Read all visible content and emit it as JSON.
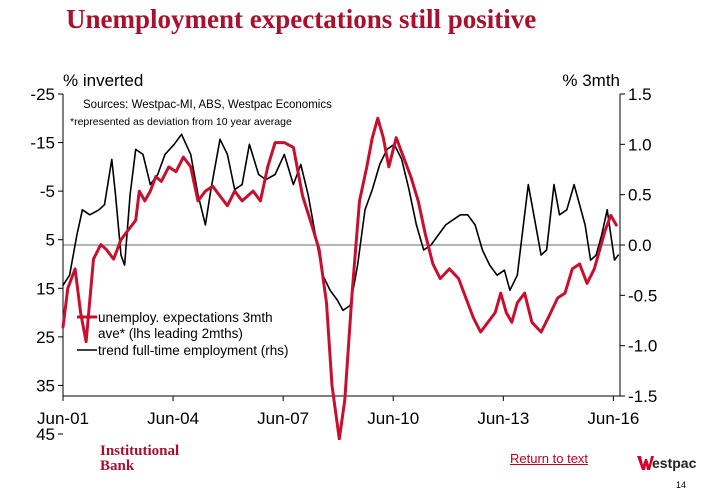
{
  "slide": {
    "title": "Unemployment expectations still positive",
    "logo_line1": "Institutional",
    "logo_line2": "Bank",
    "return_link": "Return to text",
    "brand": "estpac",
    "page_number": "14",
    "brand_color": "#a8102e"
  },
  "chart_data": {
    "type": "line",
    "left_axis_label": "% inverted",
    "right_axis_label": "% 3mth",
    "source_note": "Sources: Westpac-MI, ABS, Westpac Economics",
    "footnote": "*represented as deviation from 10 year average",
    "x_ticks": [
      "Jun-01",
      "Jun-04",
      "Jun-07",
      "Jun-10",
      "Jun-13",
      "Jun-16"
    ],
    "x_range": [
      2001.42,
      2016.6
    ],
    "y_left": {
      "ticks": [
        -25,
        -15,
        -5,
        5,
        15,
        25,
        35,
        45
      ],
      "range": [
        -25,
        45
      ],
      "inverted": true
    },
    "y_right": {
      "ticks": [
        "1.5",
        "1.0",
        "0.5",
        "0.0",
        "-0.5",
        "-1.0",
        "-1.5"
      ],
      "range": [
        -1.5,
        1.5
      ]
    },
    "zero_line_right": 0,
    "legend": [
      {
        "label_line1": "unemploy. expectations 3mth",
        "label_line2": "ave* (lhs leading 2mths)",
        "color": "#c8102e"
      },
      {
        "label_line1": "trend full-time employment (rhs)",
        "label_line2": "",
        "color": "#000000"
      }
    ],
    "series": [
      {
        "name": "unemploy. expectations 3mth ave* (lhs leading 2mths)",
        "axis": "left",
        "color": "#c8102e",
        "points": [
          [
            2001.42,
            23
          ],
          [
            2001.55,
            15
          ],
          [
            2001.75,
            11
          ],
          [
            2001.9,
            20
          ],
          [
            2002.05,
            26
          ],
          [
            2002.25,
            9
          ],
          [
            2002.45,
            6
          ],
          [
            2002.6,
            7
          ],
          [
            2002.8,
            9
          ],
          [
            2003.0,
            5
          ],
          [
            2003.2,
            3
          ],
          [
            2003.4,
            1
          ],
          [
            2003.5,
            -5
          ],
          [
            2003.65,
            -3
          ],
          [
            2003.8,
            -5
          ],
          [
            2003.95,
            -8
          ],
          [
            2004.1,
            -7
          ],
          [
            2004.3,
            -10
          ],
          [
            2004.5,
            -9
          ],
          [
            2004.7,
            -12
          ],
          [
            2004.9,
            -10
          ],
          [
            2005.1,
            -3
          ],
          [
            2005.3,
            -5
          ],
          [
            2005.5,
            -6
          ],
          [
            2005.7,
            -4
          ],
          [
            2005.9,
            -2
          ],
          [
            2006.1,
            -5
          ],
          [
            2006.3,
            -3
          ],
          [
            2006.6,
            -5
          ],
          [
            2006.8,
            -3
          ],
          [
            2007.0,
            -10
          ],
          [
            2007.2,
            -15
          ],
          [
            2007.45,
            -15
          ],
          [
            2007.7,
            -14
          ],
          [
            2007.95,
            -4
          ],
          [
            2008.2,
            2
          ],
          [
            2008.4,
            7
          ],
          [
            2008.6,
            18
          ],
          [
            2008.75,
            35
          ],
          [
            2008.95,
            46
          ],
          [
            2009.1,
            38
          ],
          [
            2009.3,
            16
          ],
          [
            2009.5,
            -3
          ],
          [
            2009.7,
            -10
          ],
          [
            2009.85,
            -16
          ],
          [
            2010.0,
            -20
          ],
          [
            2010.15,
            -16
          ],
          [
            2010.3,
            -10
          ],
          [
            2010.5,
            -16
          ],
          [
            2010.7,
            -12
          ],
          [
            2010.9,
            -8
          ],
          [
            2011.1,
            -3
          ],
          [
            2011.3,
            4
          ],
          [
            2011.5,
            10
          ],
          [
            2011.7,
            13
          ],
          [
            2011.95,
            11
          ],
          [
            2012.2,
            13
          ],
          [
            2012.4,
            17
          ],
          [
            2012.6,
            21
          ],
          [
            2012.8,
            24
          ],
          [
            2013.0,
            22
          ],
          [
            2013.2,
            20
          ],
          [
            2013.35,
            16
          ],
          [
            2013.5,
            20
          ],
          [
            2013.65,
            22
          ],
          [
            2013.8,
            18
          ],
          [
            2014.0,
            16
          ],
          [
            2014.2,
            22
          ],
          [
            2014.45,
            24
          ],
          [
            2014.65,
            21
          ],
          [
            2014.9,
            17
          ],
          [
            2015.1,
            16
          ],
          [
            2015.3,
            11
          ],
          [
            2015.5,
            10
          ],
          [
            2015.7,
            14
          ],
          [
            2015.9,
            11
          ],
          [
            2016.05,
            7
          ],
          [
            2016.2,
            3
          ],
          [
            2016.35,
            0
          ],
          [
            2016.5,
            2
          ]
        ]
      },
      {
        "name": "trend full-time employment (rhs)",
        "axis": "right",
        "color": "#000000",
        "points": [
          [
            2001.42,
            -0.4
          ],
          [
            2001.6,
            -0.3
          ],
          [
            2001.8,
            0.1
          ],
          [
            2001.95,
            0.35
          ],
          [
            2002.15,
            0.3
          ],
          [
            2002.4,
            0.35
          ],
          [
            2002.55,
            0.4
          ],
          [
            2002.75,
            0.85
          ],
          [
            2002.85,
            0.5
          ],
          [
            2003.0,
            -0.1
          ],
          [
            2003.1,
            -0.2
          ],
          [
            2003.25,
            0.5
          ],
          [
            2003.4,
            0.95
          ],
          [
            2003.6,
            0.9
          ],
          [
            2003.8,
            0.6
          ],
          [
            2004.0,
            0.7
          ],
          [
            2004.2,
            0.9
          ],
          [
            2004.45,
            1.0
          ],
          [
            2004.65,
            1.1
          ],
          [
            2004.9,
            0.9
          ],
          [
            2005.1,
            0.5
          ],
          [
            2005.3,
            0.2
          ],
          [
            2005.45,
            0.55
          ],
          [
            2005.7,
            1.05
          ],
          [
            2005.9,
            0.9
          ],
          [
            2006.1,
            0.55
          ],
          [
            2006.3,
            0.6
          ],
          [
            2006.5,
            1.0
          ],
          [
            2006.75,
            0.7
          ],
          [
            2006.95,
            0.65
          ],
          [
            2007.2,
            0.7
          ],
          [
            2007.45,
            0.9
          ],
          [
            2007.7,
            0.6
          ],
          [
            2007.9,
            0.8
          ],
          [
            2008.1,
            0.5
          ],
          [
            2008.3,
            0.1
          ],
          [
            2008.5,
            -0.3
          ],
          [
            2008.7,
            -0.45
          ],
          [
            2008.9,
            -0.55
          ],
          [
            2009.05,
            -0.65
          ],
          [
            2009.25,
            -0.6
          ],
          [
            2009.45,
            -0.2
          ],
          [
            2009.65,
            0.35
          ],
          [
            2009.85,
            0.55
          ],
          [
            2010.05,
            0.8
          ],
          [
            2010.25,
            0.95
          ],
          [
            2010.45,
            1.0
          ],
          [
            2010.65,
            0.85
          ],
          [
            2010.85,
            0.55
          ],
          [
            2011.05,
            0.2
          ],
          [
            2011.25,
            -0.05
          ],
          [
            2011.45,
            0.0
          ],
          [
            2011.65,
            0.1
          ],
          [
            2011.85,
            0.2
          ],
          [
            2012.05,
            0.25
          ],
          [
            2012.25,
            0.3
          ],
          [
            2012.45,
            0.3
          ],
          [
            2012.65,
            0.2
          ],
          [
            2012.85,
            -0.05
          ],
          [
            2013.05,
            -0.2
          ],
          [
            2013.25,
            -0.3
          ],
          [
            2013.45,
            -0.25
          ],
          [
            2013.6,
            -0.45
          ],
          [
            2013.8,
            -0.3
          ],
          [
            2014.0,
            0.3
          ],
          [
            2014.1,
            0.6
          ],
          [
            2014.25,
            0.3
          ],
          [
            2014.45,
            -0.1
          ],
          [
            2014.6,
            -0.05
          ],
          [
            2014.8,
            0.6
          ],
          [
            2014.95,
            0.3
          ],
          [
            2015.15,
            0.35
          ],
          [
            2015.35,
            0.6
          ],
          [
            2015.5,
            0.4
          ],
          [
            2015.65,
            0.2
          ],
          [
            2015.8,
            -0.15
          ],
          [
            2015.95,
            -0.1
          ],
          [
            2016.1,
            0.1
          ],
          [
            2016.25,
            0.35
          ],
          [
            2016.35,
            0.1
          ],
          [
            2016.45,
            -0.15
          ],
          [
            2016.55,
            -0.1
          ]
        ]
      }
    ]
  }
}
